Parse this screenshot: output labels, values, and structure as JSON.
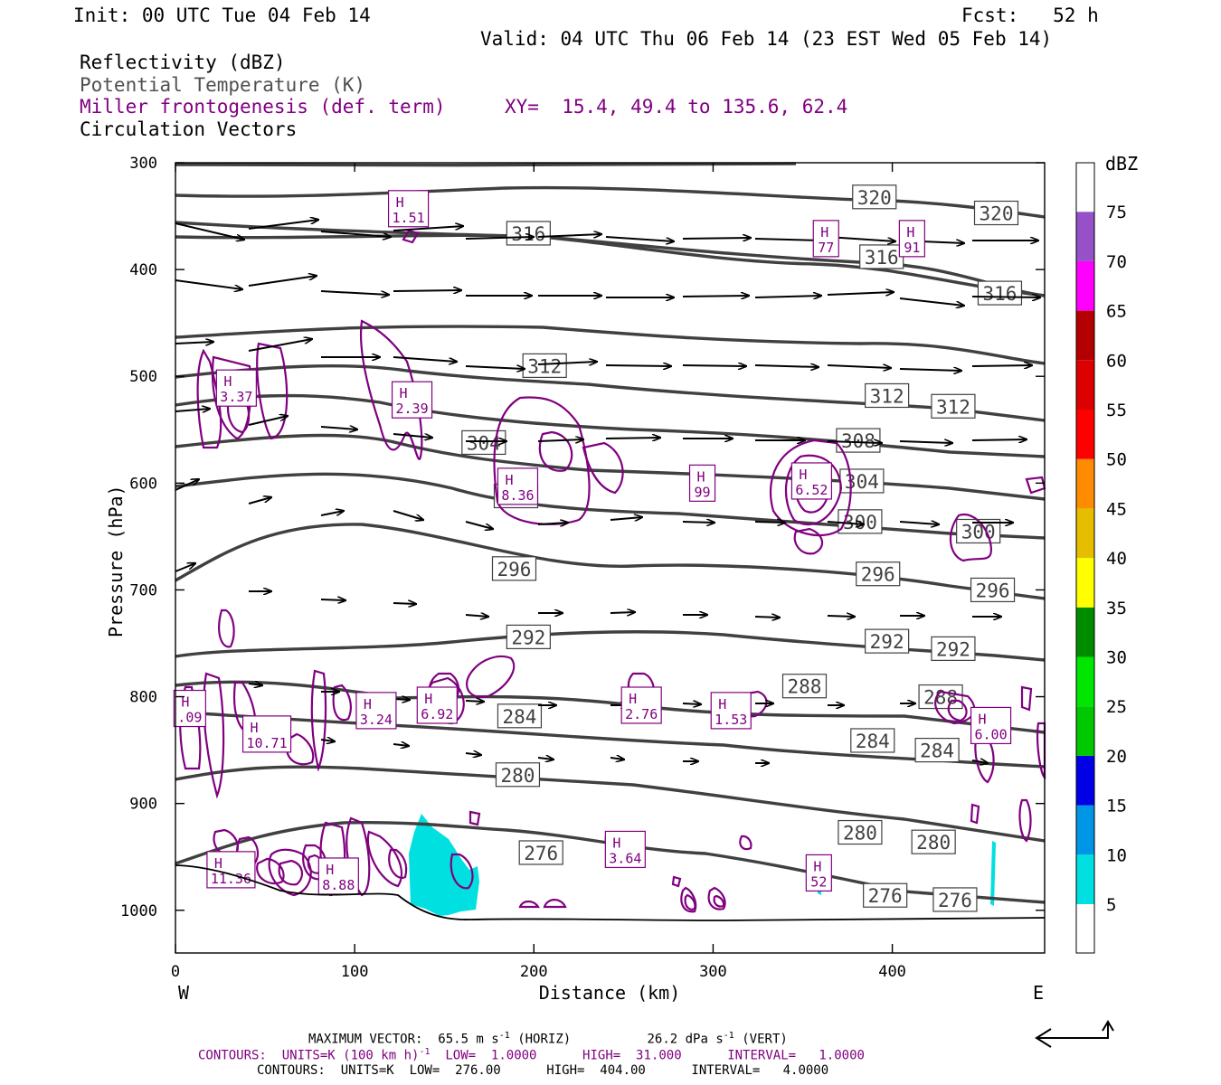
{
  "header": {
    "init": "Init: 00 UTC Tue 04 Feb 14",
    "fcst": "Fcst:   52 h",
    "valid": "Valid: 04 UTC Thu 06 Feb 14 (23 EST Wed 05 Feb 14)",
    "field1": "Reflectivity (dBZ)",
    "field2": "Potential Temperature (K)",
    "field3": "Miller frontogenesis (def. term)",
    "xy": "XY=  15.4, 49.4 to 135.6, 62.4",
    "field4": "Circulation Vectors"
  },
  "footer": {
    "max_vector": "MAXIMUM VECTOR:  65.5 m s",
    "max_vector_sup": "-1",
    "max_vector_mid": " (HORIZ)          26.2 dPa s",
    "max_vector_sup2": "-1",
    "max_vector_end": " (VERT)",
    "contours1_a": "CONTOURS:  UNITS=K (100 km h)",
    "contours1_sup": "-1",
    "contours1_b": "  LOW=  1.0000      HIGH=  31.000      INTERVAL=   1.0000",
    "contours2": "CONTOURS:  UNITS=K  LOW=  276.00      HIGH=  404.00      INTERVAL=   4.0000"
  },
  "colors": {
    "theta": "#404040",
    "frontogenesis": "#800080",
    "reflectivity": "#00e0e0"
  },
  "chart_data": {
    "type": "cross-section",
    "xlabel": "Distance (km)",
    "ylabel": "Pressure (hPa)",
    "xlim": [
      0,
      485
    ],
    "ylim": [
      1040,
      300
    ],
    "x_ticks": [
      0,
      100,
      200,
      300,
      400
    ],
    "y_ticks": [
      300,
      400,
      500,
      600,
      700,
      800,
      900,
      1000
    ],
    "x_end_labels": {
      "left": "W",
      "right": "E"
    },
    "colorbar": {
      "unit": "dBZ",
      "levels": [
        5,
        10,
        15,
        20,
        25,
        30,
        35,
        40,
        45,
        50,
        55,
        60,
        65,
        70,
        75
      ],
      "colors": [
        "#00e0e0",
        "#0096e6",
        "#0000e6",
        "#00c800",
        "#00e600",
        "#008c00",
        "#ffff00",
        "#e6be00",
        "#ff8c00",
        "#ff0000",
        "#dc0000",
        "#b40000",
        "#ff00ff",
        "#9650c8",
        "#ffffff"
      ]
    },
    "theta_labels": [
      {
        "value": "320",
        "x": 390,
        "p": 332
      },
      {
        "value": "320",
        "x": 458,
        "p": 347
      },
      {
        "value": "316",
        "x": 197,
        "p": 366
      },
      {
        "value": "316",
        "x": 394,
        "p": 388
      },
      {
        "value": "316",
        "x": 460,
        "p": 422
      },
      {
        "value": "312",
        "x": 206,
        "p": 490
      },
      {
        "value": "312",
        "x": 397,
        "p": 518
      },
      {
        "value": "312",
        "x": 434,
        "p": 528
      },
      {
        "value": "304",
        "x": 172,
        "p": 562
      },
      {
        "value": "308",
        "x": 381,
        "p": 560
      },
      {
        "value": "304",
        "x": 383,
        "p": 598
      },
      {
        "value": "300",
        "x": 190,
        "p": 612
      },
      {
        "value": "300",
        "x": 382,
        "p": 636
      },
      {
        "value": "300",
        "x": 448,
        "p": 645
      },
      {
        "value": "296",
        "x": 189,
        "p": 680
      },
      {
        "value": "296",
        "x": 392,
        "p": 685
      },
      {
        "value": "296",
        "x": 456,
        "p": 700
      },
      {
        "value": "292",
        "x": 197,
        "p": 744
      },
      {
        "value": "292",
        "x": 397,
        "p": 748
      },
      {
        "value": "292",
        "x": 434,
        "p": 755
      },
      {
        "value": "288",
        "x": 351,
        "p": 790
      },
      {
        "value": "288",
        "x": 427,
        "p": 800
      },
      {
        "value": "284",
        "x": 192,
        "p": 818
      },
      {
        "value": "284",
        "x": 389,
        "p": 841
      },
      {
        "value": "284",
        "x": 425,
        "p": 850
      },
      {
        "value": "280",
        "x": 191,
        "p": 873
      },
      {
        "value": "280",
        "x": 382,
        "p": 927
      },
      {
        "value": "280",
        "x": 423,
        "p": 936
      },
      {
        "value": "276",
        "x": 204,
        "p": 946
      },
      {
        "value": "276",
        "x": 396,
        "p": 986
      },
      {
        "value": "276",
        "x": 435,
        "p": 990
      }
    ],
    "frontogenesis_maxima": [
      {
        "label": "H",
        "value": "1.51",
        "x": 130,
        "p": 343
      },
      {
        "label": "H",
        "value": "3.37",
        "x": 34,
        "p": 511
      },
      {
        "label": "H",
        "value": "2.39",
        "x": 132,
        "p": 522
      },
      {
        "label": "H",
        "value": "8.36",
        "x": 191,
        "p": 603
      },
      {
        "label": "H",
        "value": "99",
        "x": 294,
        "p": 600
      },
      {
        "label": "H",
        "value": "6.52",
        "x": 355,
        "p": 598
      },
      {
        "label": "H",
        "value": "77",
        "x": 363,
        "p": 371
      },
      {
        "label": "H",
        "value": "91",
        "x": 411,
        "p": 371
      },
      {
        "label": "H",
        "value": ".09",
        "x": 8,
        "p": 811
      },
      {
        "label": "H",
        "value": "10.71",
        "x": 51,
        "p": 835
      },
      {
        "label": "H",
        "value": "3.24",
        "x": 112,
        "p": 813
      },
      {
        "label": "H",
        "value": "6.92",
        "x": 146,
        "p": 808
      },
      {
        "label": "H",
        "value": "2.76",
        "x": 260,
        "p": 808
      },
      {
        "label": "H",
        "value": "1.53",
        "x": 310,
        "p": 813
      },
      {
        "label": "H",
        "value": "6.00",
        "x": 455,
        "p": 827
      },
      {
        "label": "H",
        "value": "11.36",
        "x": 31,
        "p": 962
      },
      {
        "label": "H",
        "value": "8.88",
        "x": 91,
        "p": 968
      },
      {
        "label": "H",
        "value": "3.64",
        "x": 251,
        "p": 943
      },
      {
        "label": "H",
        "value": "52",
        "x": 359,
        "p": 965
      }
    ]
  }
}
